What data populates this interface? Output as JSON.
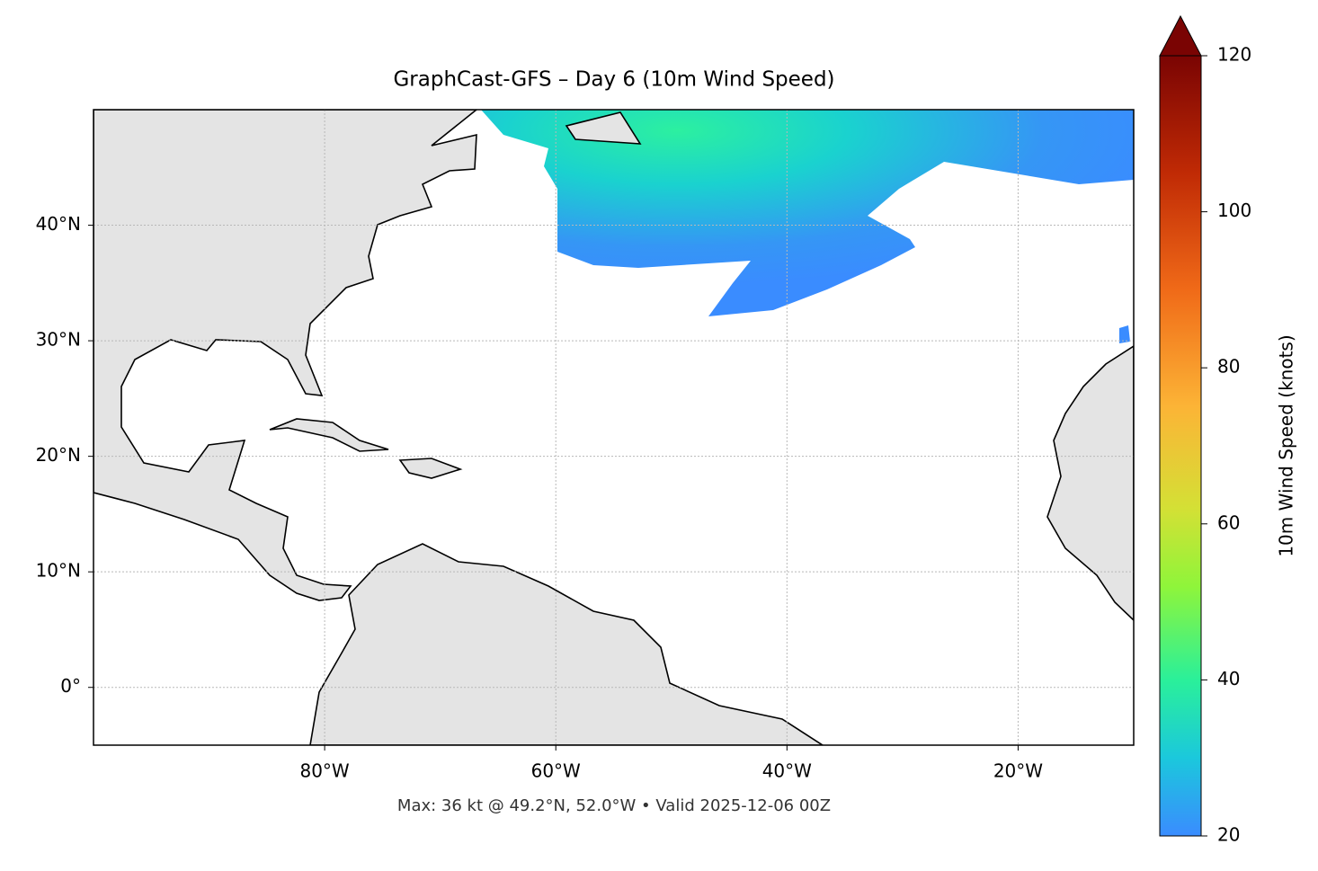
{
  "chart_data": {
    "type": "map",
    "title": "GraphCast-GFS – Day 6 (10m Wind Speed)",
    "annotation": "Max: 36 kt @ 49.2°N, 52.0°W • Valid 2025-12-06 00Z",
    "xlim": [
      -100,
      -10
    ],
    "ylim": [
      -5,
      50
    ],
    "xticks": [
      {
        "value": -80,
        "label": "80°W"
      },
      {
        "value": -60,
        "label": "60°W"
      },
      {
        "value": -40,
        "label": "40°W"
      },
      {
        "value": -20,
        "label": "20°W"
      }
    ],
    "yticks": [
      {
        "value": 0,
        "label": "0°"
      },
      {
        "value": 10,
        "label": "10°N"
      },
      {
        "value": 20,
        "label": "20°N"
      },
      {
        "value": 30,
        "label": "30°N"
      },
      {
        "value": 40,
        "label": "40°N"
      }
    ],
    "grid": true,
    "colorbar": {
      "label": "10m Wind Speed (knots)",
      "lim": [
        20,
        120
      ],
      "ticks": [
        20,
        40,
        60,
        80,
        100,
        120
      ]
    }
  }
}
